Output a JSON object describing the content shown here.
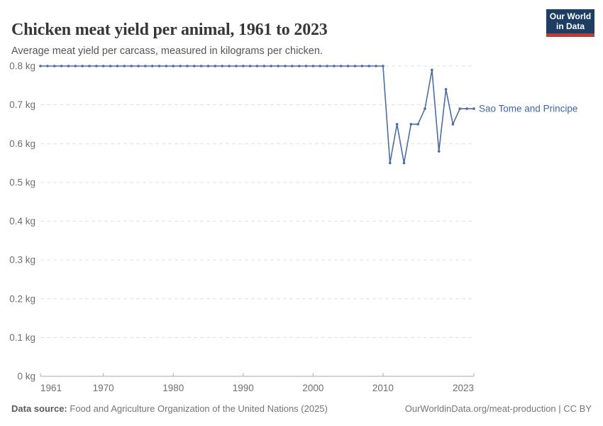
{
  "header": {
    "title": "Chicken meat yield per animal, 1961 to 2023",
    "subtitle": "Average meat yield per carcass, measured in kilograms per chicken.",
    "logo": {
      "line1": "Our World",
      "line2": "in Data",
      "bg_color": "#1d3d63",
      "bar_color": "#d0342c"
    }
  },
  "chart_data": {
    "type": "line",
    "title": "Chicken meat yield per animal, 1961 to 2023",
    "xlabel": "",
    "ylabel": "kilograms per chicken",
    "xlim": [
      1961,
      2023
    ],
    "ylim": [
      0,
      0.8
    ],
    "grid": "horizontal-dashed",
    "legend_position": "end-of-line-label",
    "xticks": [
      1961,
      1970,
      1980,
      1990,
      2000,
      2010,
      2023
    ],
    "yticks": [
      0,
      0.1,
      0.2,
      0.3,
      0.4,
      0.5,
      0.6,
      0.7,
      0.8
    ],
    "ytick_labels": [
      "0 kg",
      "0.1 kg",
      "0.2 kg",
      "0.3 kg",
      "0.4 kg",
      "0.5 kg",
      "0.6 kg",
      "0.7 kg",
      "0.8 kg"
    ],
    "x": [
      1961,
      1962,
      1963,
      1964,
      1965,
      1966,
      1967,
      1968,
      1969,
      1970,
      1971,
      1972,
      1973,
      1974,
      1975,
      1976,
      1977,
      1978,
      1979,
      1980,
      1981,
      1982,
      1983,
      1984,
      1985,
      1986,
      1987,
      1988,
      1989,
      1990,
      1991,
      1992,
      1993,
      1994,
      1995,
      1996,
      1997,
      1998,
      1999,
      2000,
      2001,
      2002,
      2003,
      2004,
      2005,
      2006,
      2007,
      2008,
      2009,
      2010,
      2011,
      2012,
      2013,
      2014,
      2015,
      2016,
      2017,
      2018,
      2019,
      2020,
      2021,
      2022,
      2023
    ],
    "series": [
      {
        "name": "Sao Tome and Principe",
        "color": "#4C6CA4",
        "label_color": "#44669C",
        "values": [
          0.8,
          0.8,
          0.8,
          0.8,
          0.8,
          0.8,
          0.8,
          0.8,
          0.8,
          0.8,
          0.8,
          0.8,
          0.8,
          0.8,
          0.8,
          0.8,
          0.8,
          0.8,
          0.8,
          0.8,
          0.8,
          0.8,
          0.8,
          0.8,
          0.8,
          0.8,
          0.8,
          0.8,
          0.8,
          0.8,
          0.8,
          0.8,
          0.8,
          0.8,
          0.8,
          0.8,
          0.8,
          0.8,
          0.8,
          0.8,
          0.8,
          0.8,
          0.8,
          0.8,
          0.8,
          0.8,
          0.8,
          0.8,
          0.8,
          0.8,
          0.55,
          0.65,
          0.55,
          0.65,
          0.65,
          0.69,
          0.79,
          0.58,
          0.74,
          0.65,
          0.69,
          0.69,
          0.69
        ]
      }
    ],
    "style": {
      "gridline_color": "#e0e0e0",
      "axis_color": "#a8a8a8",
      "tick_label_color": "#6e6e6e"
    }
  },
  "footer": {
    "datasource_label": "Data source:",
    "datasource_text": "Food and Agriculture Organization of the United Nations (2025)",
    "credit": "OurWorldinData.org/meat-production | CC BY"
  }
}
